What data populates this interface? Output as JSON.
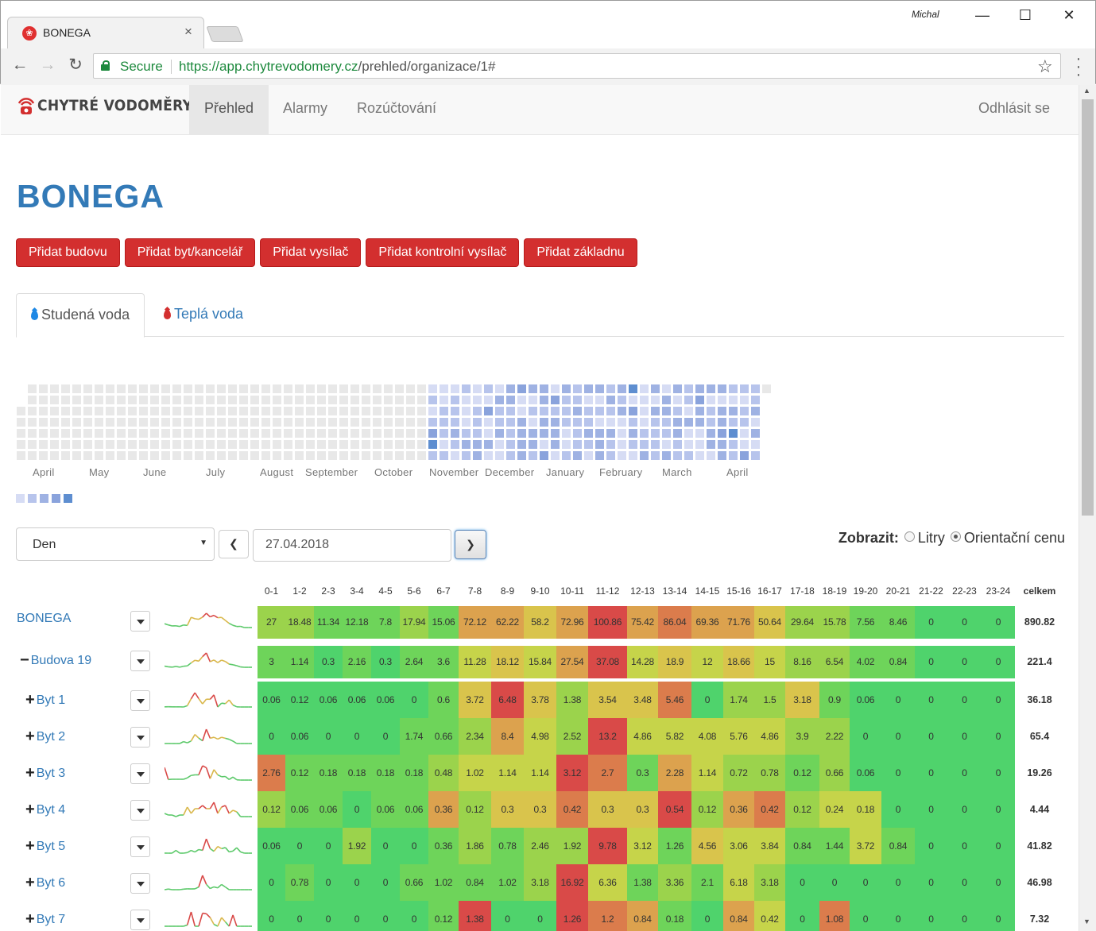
{
  "browser": {
    "tab_title": "BONEGA",
    "user": "Michal",
    "secure_label": "Secure",
    "url_scheme": "https://",
    "url_host": "app.chytrevodomery.cz",
    "url_path": "/prehled/organizace/1#"
  },
  "nav": {
    "brand": "CHYTRÉ VODOMĚRY",
    "items": [
      "Přehled",
      "Alarmy",
      "Rozúčtování"
    ],
    "active_index": 0,
    "logout": "Odhlásit se"
  },
  "page": {
    "title": "BONEGA",
    "buttons": [
      "Přidat budovu",
      "Přidat byt/kancelář",
      "Přidat vysílač",
      "Přidat kontrolní vysílač",
      "Přidat základnu"
    ],
    "water_tabs": [
      "Studená voda",
      "Teplá voda"
    ],
    "active_water_tab": 0
  },
  "heatmap": {
    "months": [
      "April",
      "May",
      "June",
      "July",
      "August",
      "September",
      "October",
      "November",
      "December",
      "January",
      "February",
      "March",
      "April"
    ],
    "legend_colors": [
      "#d6dcf4",
      "#b7c4ec",
      "#9fb2e3",
      "#8aa3dc",
      "#5e8ed0"
    ]
  },
  "controls": {
    "period": "Den",
    "date": "27.04.2018",
    "show_label": "Zobrazit:",
    "option_liters": "Litry",
    "option_price": "Orientační cenu",
    "selected": "price"
  },
  "table": {
    "hours": [
      "0-1",
      "1-2",
      "2-3",
      "3-4",
      "4-5",
      "5-6",
      "6-7",
      "7-8",
      "8-9",
      "9-10",
      "10-11",
      "11-12",
      "12-13",
      "13-14",
      "14-15",
      "15-16",
      "16-17",
      "17-18",
      "18-19",
      "19-20",
      "20-21",
      "21-22",
      "22-23",
      "23-24"
    ],
    "total_label": "celkem",
    "rows": [
      {
        "name": "BONEGA",
        "sign": "",
        "level": 0,
        "total": "890.82",
        "values": [
          "27",
          "18.48",
          "11.34",
          "12.18",
          "7.8",
          "17.94",
          "15.06",
          "72.12",
          "62.22",
          "58.2",
          "72.96",
          "100.86",
          "75.42",
          "86.04",
          "69.36",
          "71.76",
          "50.64",
          "29.64",
          "15.78",
          "7.56",
          "8.46",
          "0",
          "0",
          "0"
        ]
      },
      {
        "name": "Budova 19",
        "sign": "−",
        "level": 1,
        "total": "221.4",
        "values": [
          "3",
          "1.14",
          "0.3",
          "2.16",
          "0.3",
          "2.64",
          "3.6",
          "11.28",
          "18.12",
          "15.84",
          "27.54",
          "37.08",
          "14.28",
          "18.9",
          "12",
          "18.66",
          "15",
          "8.16",
          "6.54",
          "4.02",
          "0.84",
          "0",
          "0",
          "0"
        ]
      },
      {
        "name": "Byt 1",
        "sign": "+",
        "level": 2,
        "total": "36.18",
        "values": [
          "0.06",
          "0.12",
          "0.06",
          "0.06",
          "0.06",
          "0",
          "0.6",
          "3.72",
          "6.48",
          "3.78",
          "1.38",
          "3.54",
          "3.48",
          "5.46",
          "0",
          "1.74",
          "1.5",
          "3.18",
          "0.9",
          "0.06",
          "0",
          "0",
          "0",
          "0"
        ]
      },
      {
        "name": "Byt 2",
        "sign": "+",
        "level": 2,
        "total": "65.4",
        "values": [
          "0",
          "0.06",
          "0",
          "0",
          "0",
          "1.74",
          "0.66",
          "2.34",
          "8.4",
          "4.98",
          "2.52",
          "13.2",
          "4.86",
          "5.82",
          "4.08",
          "5.76",
          "4.86",
          "3.9",
          "2.22",
          "0",
          "0",
          "0",
          "0",
          "0"
        ]
      },
      {
        "name": "Byt 3",
        "sign": "+",
        "level": 2,
        "total": "19.26",
        "values": [
          "2.76",
          "0.12",
          "0.18",
          "0.18",
          "0.18",
          "0.18",
          "0.48",
          "1.02",
          "1.14",
          "1.14",
          "3.12",
          "2.7",
          "0.3",
          "2.28",
          "1.14",
          "0.72",
          "0.78",
          "0.12",
          "0.66",
          "0.06",
          "0",
          "0",
          "0",
          "0"
        ]
      },
      {
        "name": "Byt 4",
        "sign": "+",
        "level": 2,
        "total": "4.44",
        "values": [
          "0.12",
          "0.06",
          "0.06",
          "0",
          "0.06",
          "0.06",
          "0.36",
          "0.12",
          "0.3",
          "0.3",
          "0.42",
          "0.3",
          "0.3",
          "0.54",
          "0.12",
          "0.36",
          "0.42",
          "0.12",
          "0.24",
          "0.18",
          "0",
          "0",
          "0",
          "0"
        ]
      },
      {
        "name": "Byt 5",
        "sign": "+",
        "level": 2,
        "total": "41.82",
        "values": [
          "0.06",
          "0",
          "0",
          "1.92",
          "0",
          "0",
          "0.36",
          "1.86",
          "0.78",
          "2.46",
          "1.92",
          "9.78",
          "3.12",
          "1.26",
          "4.56",
          "3.06",
          "3.84",
          "0.84",
          "1.44",
          "3.72",
          "0.84",
          "0",
          "0",
          "0"
        ]
      },
      {
        "name": "Byt 6",
        "sign": "+",
        "level": 2,
        "total": "46.98",
        "values": [
          "0",
          "0.78",
          "0",
          "0",
          "0",
          "0.66",
          "1.02",
          "0.84",
          "1.02",
          "3.18",
          "16.92",
          "6.36",
          "1.38",
          "3.36",
          "2.1",
          "6.18",
          "3.18",
          "0",
          "0",
          "0",
          "0",
          "0",
          "0",
          "0"
        ]
      },
      {
        "name": "Byt 7",
        "sign": "+",
        "level": 2,
        "total": "7.32",
        "values": [
          "0",
          "0",
          "0",
          "0",
          "0",
          "0",
          "0.12",
          "1.38",
          "0",
          "0",
          "1.26",
          "1.2",
          "0.84",
          "0.18",
          "0",
          "0.84",
          "0.42",
          "0",
          "1.08",
          "0",
          "0",
          "0",
          "0",
          "0"
        ]
      }
    ]
  }
}
